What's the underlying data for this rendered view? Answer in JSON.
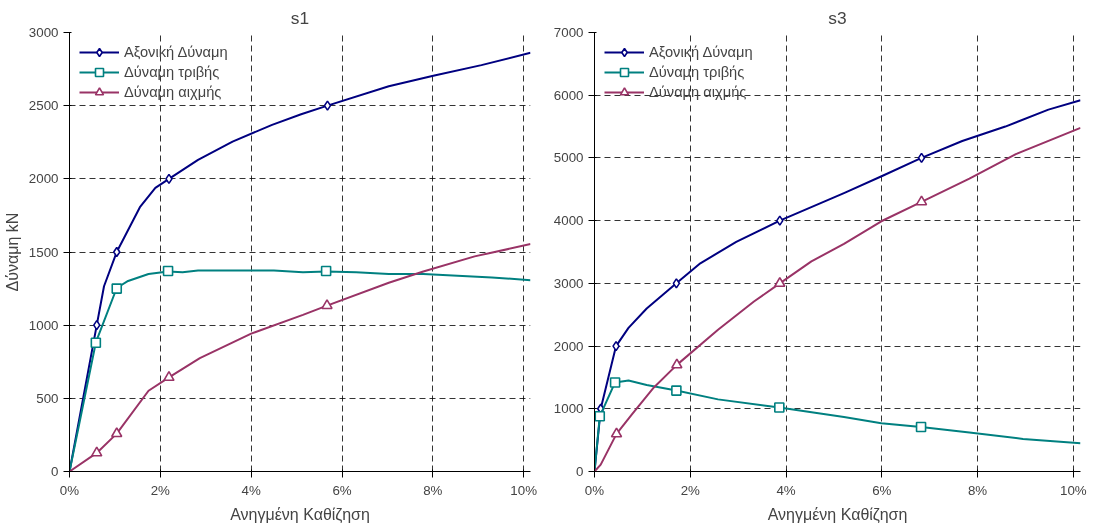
{
  "chart_data": [
    {
      "type": "line",
      "title": "s1",
      "xlabel": "Ανηγμένη Καθίζηση",
      "ylabel": "Δύναμη kN",
      "xlim": [
        0,
        10.15
      ],
      "ylim": [
        0,
        3000
      ],
      "xticks": [
        {
          "value": 0,
          "label": "0%"
        },
        {
          "value": 2,
          "label": "2%"
        },
        {
          "value": 4,
          "label": "4%"
        },
        {
          "value": 6,
          "label": "6%"
        },
        {
          "value": 8,
          "label": "8%"
        },
        {
          "value": 10,
          "label": "10%"
        }
      ],
      "yticks": [
        0,
        500,
        1000,
        1500,
        2000,
        2500,
        3000
      ],
      "grid": true,
      "legend": "top left",
      "line_style": "solid",
      "series": [
        {
          "name": "Αξονική Δύναμη",
          "color": "#000080",
          "x": [
            0,
            0.6,
            0.76,
            1.04,
            1.55,
            1.89,
            2.19,
            2.83,
            3.59,
            4.46,
            5.1,
            5.68,
            7.03,
            8.01,
            9.07,
            10.15
          ],
          "values": [
            0,
            1000,
            1266,
            1500,
            1806,
            1938,
            2000,
            2130,
            2254,
            2369,
            2441,
            2500,
            2633,
            2705,
            2777,
            2861
          ]
        },
        {
          "type": "scatter",
          "color": "#000080",
          "marker": "diamond",
          "x": [
            0.6,
            1.04,
            2.19,
            5.68
          ],
          "values": [
            1000,
            1500,
            2000,
            2500
          ]
        },
        {
          "name": "Δύναμη τριβής",
          "color": "#008080",
          "x": [
            0,
            0.58,
            1.04,
            1.29,
            1.74,
            2.17,
            2.49,
            2.83,
            4.5,
            5.14,
            5.65,
            6.31,
            7.03,
            7.79,
            9.3,
            10.15
          ],
          "values": [
            0,
            882,
            1254,
            1302,
            1350,
            1367,
            1362,
            1374,
            1374,
            1362,
            1367,
            1362,
            1350,
            1350,
            1326,
            1307
          ]
        },
        {
          "type": "scatter",
          "color": "#008080",
          "marker": "square",
          "x": [
            0.58,
            1.04,
            2.17,
            5.65
          ],
          "values": [
            880,
            1250,
            1370,
            1370
          ]
        },
        {
          "name": "Δύναμη αιχμής",
          "color": "#993366",
          "x": [
            0,
            0.6,
            1.04,
            1.74,
            2.19,
            2.87,
            4.0,
            5.14,
            5.67,
            7.03,
            7.79,
            8.92,
            10.15
          ],
          "values": [
            0,
            127,
            259,
            552,
            643,
            775,
            942,
            1070,
            1134,
            1290,
            1367,
            1470,
            1554
          ]
        },
        {
          "type": "scatter",
          "color": "#993366",
          "marker": "triangle",
          "x": [
            0.6,
            1.04,
            2.19,
            5.67
          ],
          "values": [
            127,
            259,
            643,
            1134
          ]
        }
      ]
    },
    {
      "type": "line",
      "title": "s3",
      "xlabel": "Ανηγμένη Καθίζηση",
      "xlim": [
        0,
        10.15
      ],
      "ylim": [
        0,
        7000
      ],
      "xticks": [
        {
          "value": 0,
          "label": "0%"
        },
        {
          "value": 2,
          "label": "2%"
        },
        {
          "value": 4,
          "label": "4%"
        },
        {
          "value": 6,
          "label": "6%"
        },
        {
          "value": 8,
          "label": "8%"
        },
        {
          "value": 10,
          "label": "10%"
        }
      ],
      "yticks": [
        0,
        1000,
        2000,
        3000,
        4000,
        5000,
        6000,
        7000
      ],
      "grid": true,
      "legend": "top left",
      "line_style": "solid",
      "series": [
        {
          "name": "Αξονική Δύναμη",
          "color": "#000080",
          "x": [
            0,
            0.13,
            0.45,
            0.71,
            1.09,
            1.71,
            2.21,
            2.96,
            3.87,
            5.21,
            6.03,
            6.83,
            7.68,
            8.58,
            9.48,
            10.15
          ],
          "values": [
            0,
            1000,
            2000,
            2290,
            2600,
            3000,
            3320,
            3660,
            4000,
            4440,
            4720,
            5000,
            5270,
            5500,
            5770,
            5920
          ]
        },
        {
          "type": "scatter",
          "color": "#000080",
          "marker": "diamond",
          "x": [
            0.13,
            0.45,
            1.71,
            3.87,
            6.83
          ],
          "values": [
            1000,
            2000,
            3000,
            4000,
            5000
          ]
        },
        {
          "name": "Δύναμη τριβής",
          "color": "#008080",
          "x": [
            0,
            0.11,
            0.43,
            0.71,
            1.09,
            1.71,
            2.58,
            3.86,
            5.21,
            5.99,
            6.82,
            7.83,
            8.95,
            10.15
          ],
          "values": [
            0,
            880,
            1420,
            1450,
            1380,
            1290,
            1150,
            1020,
            870,
            770,
            710,
            620,
            520,
            450
          ]
        },
        {
          "type": "scatter",
          "color": "#008080",
          "marker": "square",
          "x": [
            0.11,
            0.43,
            1.71,
            3.86,
            6.82
          ],
          "values": [
            880,
            1420,
            1290,
            1020,
            710
          ]
        },
        {
          "name": "Δύναμη αιχμής",
          "color": "#993366",
          "x": [
            0,
            0.13,
            0.46,
            0.79,
            1.24,
            1.72,
            2.58,
            3.33,
            3.87,
            4.53,
            5.21,
            5.99,
            6.83,
            7.83,
            8.8,
            10.15
          ],
          "values": [
            0,
            110,
            600,
            920,
            1340,
            1700,
            2260,
            2710,
            3000,
            3350,
            3630,
            3990,
            4300,
            4670,
            5060,
            5480
          ]
        },
        {
          "type": "scatter",
          "color": "#993366",
          "marker": "triangle",
          "x": [
            0.46,
            1.72,
            3.87,
            6.83
          ],
          "values": [
            600,
            1700,
            3000,
            4300
          ]
        }
      ]
    }
  ]
}
